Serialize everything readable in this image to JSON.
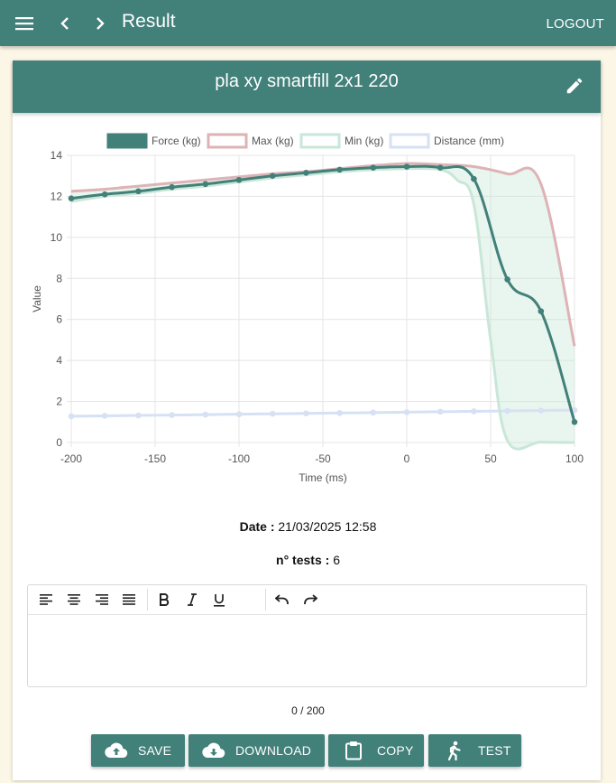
{
  "appbar": {
    "title": "Result",
    "logout_label": "LOGOUT"
  },
  "card": {
    "title": "pla xy smartfill 2x1 220"
  },
  "info": {
    "date_label": "Date :",
    "date_value": "21/03/2025 12:58",
    "tests_label": "n° tests :",
    "tests_value": "6"
  },
  "editor": {
    "counter": "0 / 200"
  },
  "buttons": {
    "save": "SAVE",
    "download": "DOWNLOAD",
    "copy": "COPY",
    "test": "TEST"
  },
  "colors": {
    "primary": "#42807a",
    "force": "#42807a",
    "max": "#ddb3b6",
    "min": "#c9e7d8",
    "distance": "#d6e1f4"
  },
  "chart_data": {
    "type": "line",
    "xlabel": "Time (ms)",
    "ylabel": "Value",
    "xlim": [
      -200,
      100
    ],
    "ylim": [
      0,
      14
    ],
    "x_ticks": [
      -200,
      -150,
      -100,
      -50,
      0,
      50,
      100
    ],
    "y_ticks": [
      0,
      2,
      4,
      6,
      8,
      10,
      12,
      14
    ],
    "legend_position": "top-center",
    "grid": true,
    "series": [
      {
        "name": "Force (kg)",
        "color": "#42807a",
        "points": true,
        "x": [
          -200,
          -180,
          -160,
          -140,
          -120,
          -100,
          -80,
          -60,
          -40,
          -20,
          0,
          20,
          40,
          60,
          80,
          100
        ],
        "y": [
          11.9,
          12.1,
          12.25,
          12.45,
          12.6,
          12.8,
          13.0,
          13.15,
          13.3,
          13.4,
          13.45,
          13.4,
          12.85,
          7.95,
          6.4,
          1.0
        ]
      },
      {
        "name": "Max (kg)",
        "color": "#ddb3b6",
        "points": false,
        "x": [
          -200,
          -180,
          -160,
          -140,
          -120,
          -100,
          -80,
          -60,
          -40,
          -20,
          0,
          20,
          40,
          60,
          80,
          100
        ],
        "y": [
          12.25,
          12.35,
          12.5,
          12.65,
          12.8,
          12.95,
          13.1,
          13.2,
          13.35,
          13.5,
          13.6,
          13.55,
          13.45,
          13.1,
          12.6,
          4.7
        ]
      },
      {
        "name": "Min (kg)",
        "color": "#c9e7d8",
        "points": false,
        "x": [
          -200,
          -180,
          -160,
          -140,
          -120,
          -100,
          -80,
          -60,
          -40,
          -20,
          0,
          20,
          30,
          40,
          50,
          60,
          80,
          100
        ],
        "y": [
          11.75,
          12.0,
          12.15,
          12.35,
          12.5,
          12.7,
          12.9,
          13.05,
          13.2,
          13.3,
          13.35,
          13.3,
          12.8,
          11.6,
          5.0,
          0.1,
          0.02,
          0.0
        ]
      },
      {
        "name": "Distance (mm)",
        "color": "#d6e1f4",
        "points": true,
        "x": [
          -200,
          -180,
          -160,
          -140,
          -120,
          -100,
          -80,
          -60,
          -40,
          -20,
          0,
          20,
          40,
          60,
          80,
          100
        ],
        "y": [
          1.28,
          1.3,
          1.32,
          1.34,
          1.36,
          1.38,
          1.4,
          1.42,
          1.44,
          1.46,
          1.48,
          1.5,
          1.52,
          1.54,
          1.56,
          1.58
        ]
      }
    ]
  }
}
